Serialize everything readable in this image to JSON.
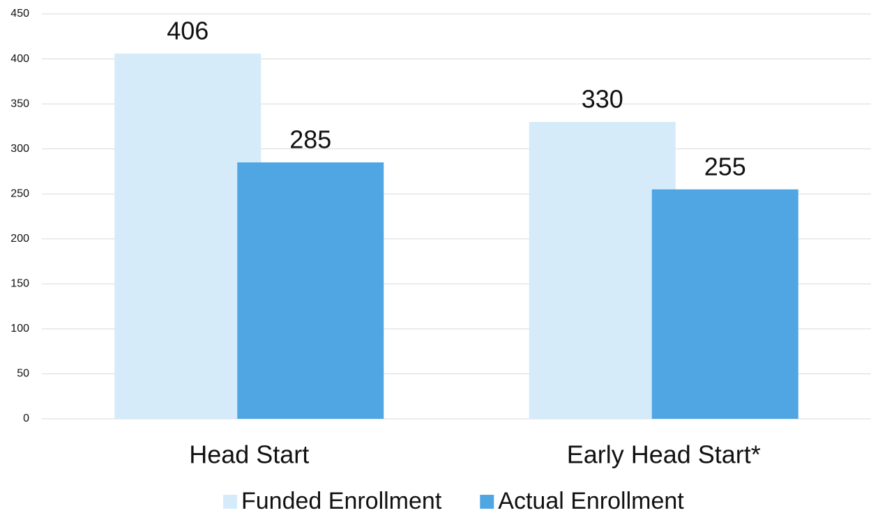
{
  "chart_data": {
    "type": "bar",
    "categories": [
      "Head Start",
      "Early Head Start*"
    ],
    "series": [
      {
        "name": "Funded Enrollment",
        "color": "#d6ebfa",
        "values": [
          406,
          330
        ]
      },
      {
        "name": "Actual Enrollment",
        "color": "#4fa6e2",
        "values": [
          285,
          255
        ]
      }
    ],
    "ylim": [
      0,
      450
    ],
    "yticks": [
      0,
      50,
      100,
      150,
      200,
      250,
      300,
      350,
      400,
      450
    ],
    "grid": true
  }
}
